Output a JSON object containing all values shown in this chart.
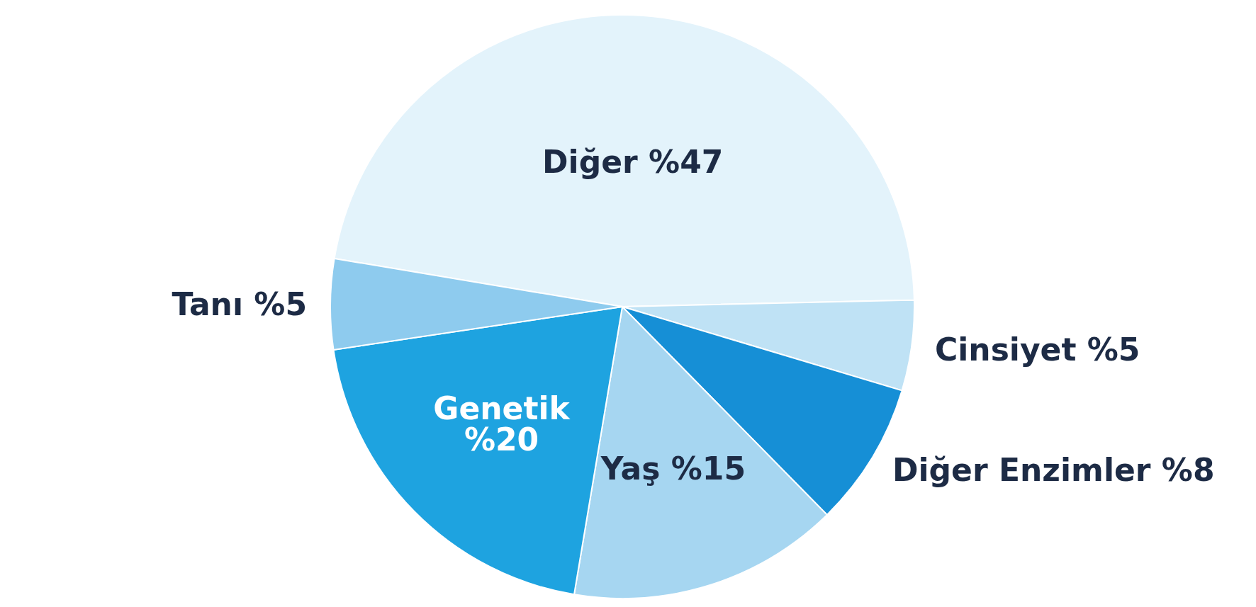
{
  "chart_data": {
    "type": "pie",
    "categories": [
      "Diğer",
      "Cinsiyet",
      "Diğer Enzimler",
      "Yaş",
      "Genetik",
      "Tanı"
    ],
    "values": [
      47,
      5,
      8,
      15,
      20,
      5
    ],
    "value_labels": [
      "%47",
      "%5",
      "%8",
      "%15",
      "%20",
      "%5"
    ],
    "colors": [
      "#e3f3fb",
      "#bfe2f5",
      "#168fd6",
      "#a6d6f1",
      "#1ea3e0",
      "#8ecbee"
    ]
  }
}
